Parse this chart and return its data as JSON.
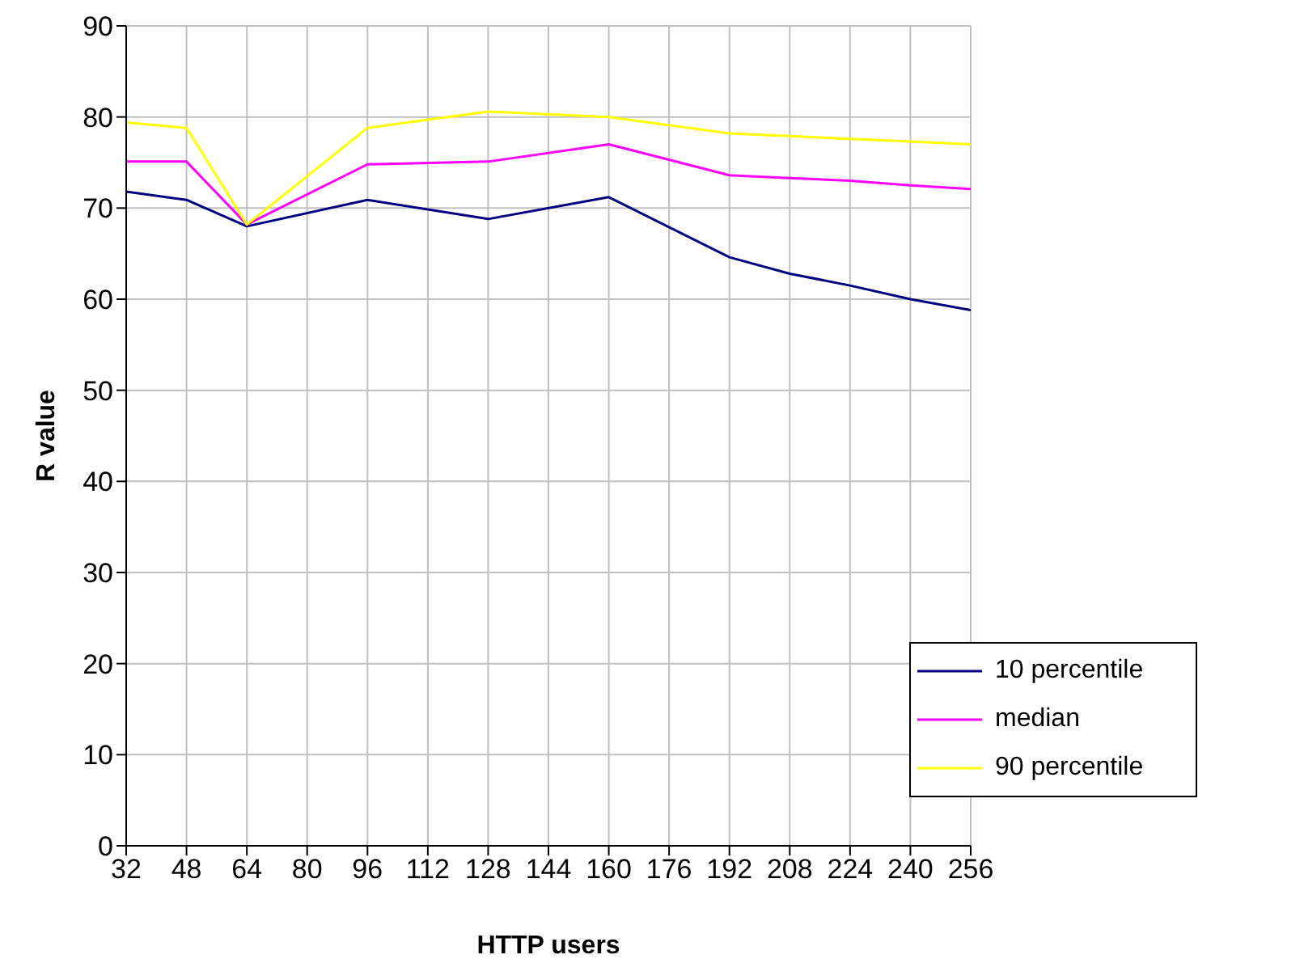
{
  "chart_data": {
    "type": "line",
    "xlabel": "HTTP users",
    "ylabel": "R value",
    "x": [
      32,
      48,
      64,
      96,
      128,
      160,
      192,
      208,
      224,
      240,
      256
    ],
    "series": [
      {
        "name": "10 percentile",
        "color": "#000080",
        "values": [
          71.8,
          70.9,
          68.0,
          70.9,
          68.8,
          71.2,
          64.6,
          62.8,
          61.5,
          60.0,
          58.8
        ]
      },
      {
        "name": "median",
        "color": "#ff00ff",
        "values": [
          75.1,
          75.1,
          68.2,
          74.8,
          75.1,
          77.0,
          73.6,
          73.3,
          73.0,
          72.5,
          72.1
        ]
      },
      {
        "name": "90 percentile",
        "color": "#ffff00",
        "values": [
          79.4,
          78.8,
          68.2,
          78.8,
          80.6,
          80.0,
          78.2,
          77.9,
          77.6,
          77.3,
          77.0
        ]
      }
    ],
    "xlim": [
      32,
      256
    ],
    "xticks": [
      32,
      48,
      64,
      80,
      96,
      112,
      128,
      144,
      160,
      176,
      192,
      208,
      224,
      240,
      256
    ],
    "ylim": [
      0,
      90
    ],
    "yticks": [
      0,
      10,
      20,
      30,
      40,
      50,
      60,
      70,
      80,
      90
    ],
    "grid": true,
    "legend": "bottom right",
    "marker": "none",
    "line_style": "solid"
  }
}
